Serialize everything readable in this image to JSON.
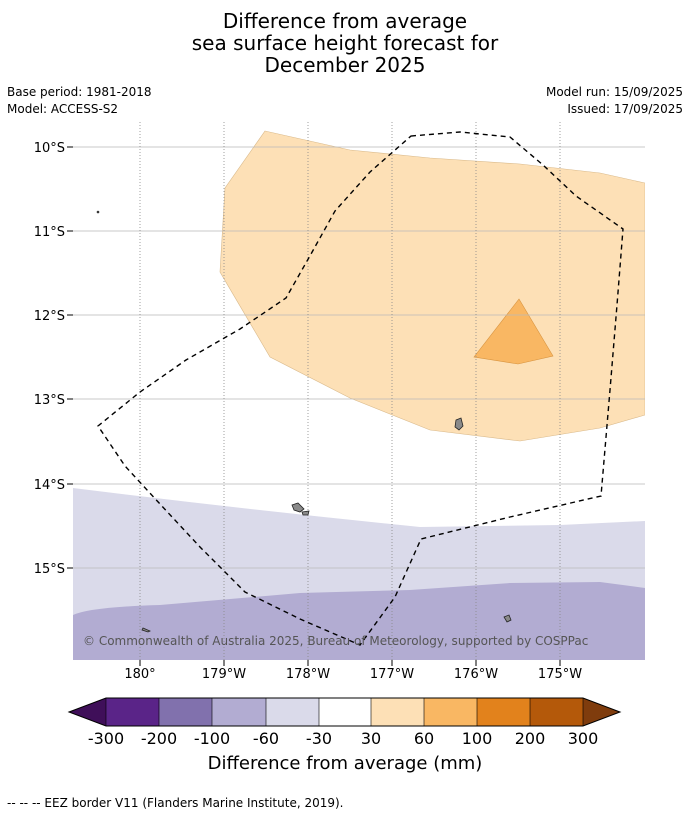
{
  "header": {
    "title_lines": [
      "Difference from average",
      "sea surface height forecast for",
      "December 2025"
    ],
    "base_period": "Base period: 1981-2018",
    "model": "Model: ACCESS-S2",
    "model_run": "Model run: 15/09/2025",
    "issued": "Issued: 17/09/2025"
  },
  "map": {
    "lat_labels": [
      "10°S",
      "11°S",
      "12°S",
      "13°S",
      "14°S",
      "15°S"
    ],
    "lon_labels": [
      "180°",
      "179°W",
      "178°W",
      "177°W",
      "176°W",
      "175°W"
    ],
    "copyright": "© Commonwealth of Australia 2025, Bureau of Meteorology, supported by COSPPac"
  },
  "colorbar": {
    "tick_labels": [
      "-300",
      "-200",
      "-100",
      "-60",
      "-30",
      "30",
      "60",
      "100",
      "200",
      "300"
    ],
    "colors": [
      "#3f0f59",
      "#5a2488",
      "#8171ad",
      "#b2acd2",
      "#dadaea",
      "#ffffff",
      "#fde0b6",
      "#f9b763",
      "#e2821c",
      "#b4590a",
      "#7f3c0d"
    ],
    "title": "Difference from average (mm)"
  },
  "footnote": "--  --  -- EEZ border V11 (Flanders Marine Institute, 2019)."
}
